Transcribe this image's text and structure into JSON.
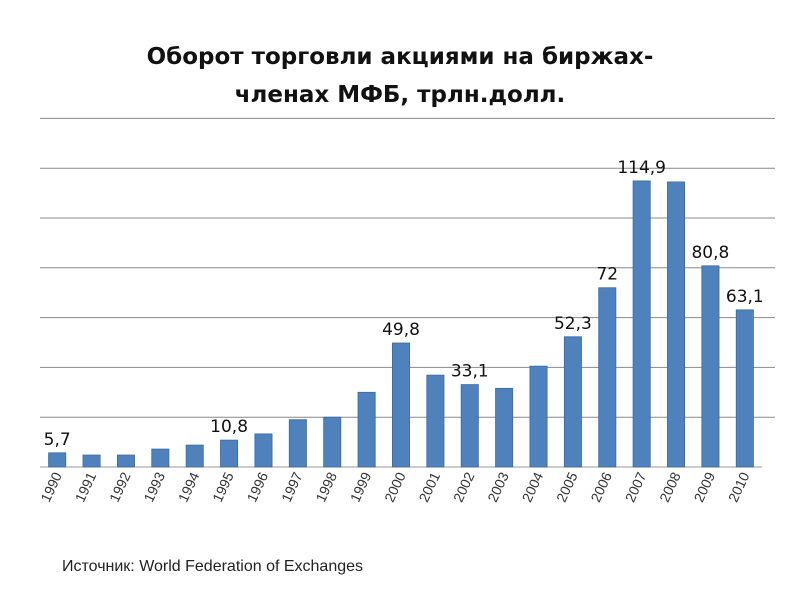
{
  "chart_data": {
    "type": "bar",
    "title_line1": "Оборот торговли акциями на биржах-",
    "title_line2": "членах МФБ, трлн.долл.",
    "categories": [
      "1990",
      "1991",
      "1992",
      "1993",
      "1994",
      "1995",
      "1996",
      "1997",
      "1998",
      "1999",
      "2000",
      "2001",
      "2002",
      "2003",
      "2004",
      "2005",
      "2006",
      "2007",
      "2008",
      "2009",
      "2010"
    ],
    "values": [
      5.7,
      4.8,
      4.8,
      7.2,
      8.8,
      10.8,
      13.3,
      19,
      20,
      30,
      49.8,
      36.9,
      33.1,
      31.6,
      40.5,
      52.3,
      72,
      114.9,
      114.5,
      80.8,
      63.1
    ],
    "data_labels": {
      "1990": "5,7",
      "1995": "10,8",
      "2000": "49,8",
      "2002": "33,1",
      "2005": "52,3",
      "2006": "72",
      "2007": "114,9",
      "2009": "80,8",
      "2010": "63,1"
    },
    "ylim": [
      0,
      140
    ],
    "grid": true,
    "xlabel": "",
    "ylabel": "",
    "bar_color": "#4f81bd"
  },
  "source": "Источник: World Federation of Exchanges"
}
